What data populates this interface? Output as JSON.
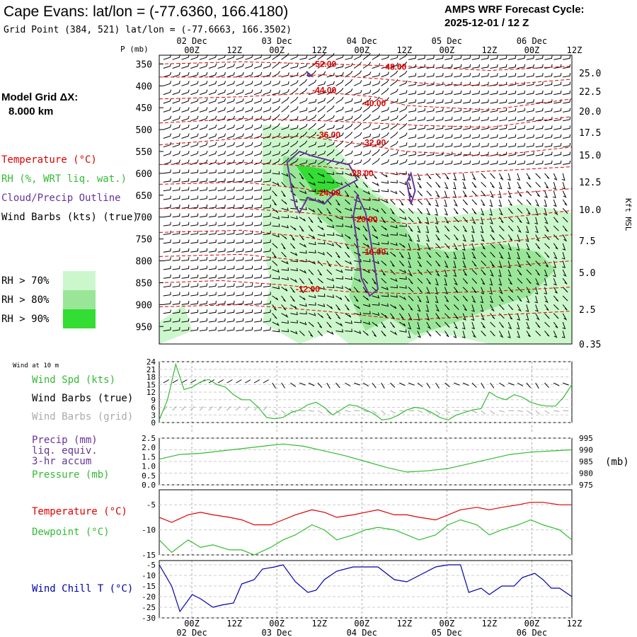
{
  "header": {
    "station_title": "Cape Evans:  lat/lon = (-77.6360, 166.4180)",
    "grid_point": "Grid Point (384, 521) lat/lon = (-77.6663, 166.3502)",
    "cycle_line1": "AMPS WRF Forecast Cycle:",
    "cycle_line2": "2025-12-01 / 12  Z"
  },
  "model": {
    "grid_label": "Model Grid ΔX:",
    "grid_value": "8.000 km"
  },
  "legend": {
    "temperature": "Temperature (°C)",
    "rh": "RH (%, WRT liq. wat.)",
    "cloud": "Cloud/Precip Outline",
    "wind": "Wind Barbs (kts) (true)",
    "rh70": "RH > 70%",
    "rh80": "RH > 80%",
    "rh90": "RH > 90%"
  },
  "colors": {
    "temp": "#dd0000",
    "rh70": "#ccf7cc",
    "rh80": "#99e699",
    "rh90": "#33dd33",
    "cloud": "#663399",
    "green": "#33bb33",
    "blue": "#0000aa",
    "gray": "#aaaaaa"
  },
  "time_axis": {
    "hour_labels": [
      "00Z",
      "12Z",
      "00Z",
      "12Z",
      "00Z",
      "12Z",
      "00Z",
      "12Z",
      "00Z",
      "12Z"
    ],
    "date_labels": [
      "02 Dec",
      "03 Dec",
      "04 Dec",
      "05 Dec",
      "06 Dec"
    ]
  },
  "chart_data": [
    {
      "type": "contour",
      "name": "vertical cross-section",
      "ylabel": "P (mb)",
      "y2label": "Kft MSL",
      "pressure_ticks": [
        350,
        400,
        450,
        500,
        550,
        600,
        650,
        700,
        750,
        800,
        850,
        900,
        950
      ],
      "height_ticks": [
        "25.0",
        "22.5",
        "20.0",
        "17.5",
        "15.0",
        "12.5",
        "10.0",
        "7.5",
        "5.0",
        "2.5",
        "0.35"
      ],
      "temperature_labels": [
        {
          "text": "-52.00",
          "t": 40,
          "p": 350
        },
        {
          "text": "-48.00",
          "t": 57,
          "p": 357
        },
        {
          "text": "-44.00",
          "t": 40,
          "p": 410
        },
        {
          "text": "-40.00",
          "t": 52,
          "p": 440
        },
        {
          "text": "-36.00",
          "t": 41,
          "p": 512
        },
        {
          "text": "-32.00",
          "t": 52,
          "p": 530
        },
        {
          "text": "-28.00",
          "t": 49,
          "p": 600
        },
        {
          "text": "-24.00",
          "t": 41,
          "p": 645
        },
        {
          "text": "-20.00",
          "t": 50,
          "p": 705
        },
        {
          "text": "-16.00",
          "t": 52,
          "p": 780
        },
        {
          "text": "-12.00",
          "t": 36,
          "p": 865
        }
      ],
      "temperature_contours": [
        {
          "pts": [
            [
              0,
              350
            ],
            [
              20,
              345
            ],
            [
              40,
              350
            ],
            [
              60,
              355
            ],
            [
              80,
              365
            ],
            [
              100,
              355
            ]
          ]
        },
        {
          "pts": [
            [
              0,
              380
            ],
            [
              20,
              380
            ],
            [
              40,
              375
            ],
            [
              55,
              385
            ],
            [
              65,
              395
            ],
            [
              80,
              400
            ],
            [
              100,
              385
            ]
          ]
        },
        {
          "pts": [
            [
              0,
              430
            ],
            [
              20,
              425
            ],
            [
              40,
              415
            ],
            [
              52,
              425
            ],
            [
              60,
              445
            ],
            [
              80,
              455
            ],
            [
              100,
              430
            ]
          ]
        },
        {
          "pts": [
            [
              0,
              485
            ],
            [
              20,
              475
            ],
            [
              40,
              480
            ],
            [
              52,
              485
            ],
            [
              62,
              490
            ],
            [
              80,
              495
            ],
            [
              100,
              470
            ]
          ]
        },
        {
          "pts": [
            [
              0,
              535
            ],
            [
              20,
              520
            ],
            [
              35,
              515
            ],
            [
              50,
              535
            ],
            [
              60,
              550
            ],
            [
              80,
              560
            ],
            [
              100,
              540
            ]
          ]
        },
        {
          "pts": [
            [
              0,
              580
            ],
            [
              20,
              575
            ],
            [
              40,
              585
            ],
            [
              50,
              595
            ],
            [
              62,
              605
            ],
            [
              80,
              595
            ],
            [
              100,
              585
            ]
          ]
        },
        {
          "pts": [
            [
              0,
              625
            ],
            [
              20,
              620
            ],
            [
              35,
              635
            ],
            [
              50,
              660
            ],
            [
              62,
              660
            ],
            [
              80,
              650
            ],
            [
              100,
              635
            ]
          ]
        },
        {
          "pts": [
            [
              0,
              680
            ],
            [
              20,
              680
            ],
            [
              35,
              690
            ],
            [
              50,
              705
            ],
            [
              60,
              715
            ],
            [
              80,
              705
            ],
            [
              100,
              685
            ]
          ]
        },
        {
          "pts": [
            [
              0,
              735
            ],
            [
              20,
              730
            ],
            [
              35,
              745
            ],
            [
              50,
              770
            ],
            [
              60,
              775
            ],
            [
              80,
              760
            ],
            [
              100,
              740
            ]
          ]
        },
        {
          "pts": [
            [
              0,
              790
            ],
            [
              20,
              785
            ],
            [
              35,
              800
            ],
            [
              50,
              820
            ],
            [
              60,
              830
            ],
            [
              80,
              815
            ],
            [
              100,
              800
            ]
          ]
        },
        {
          "pts": [
            [
              0,
              850
            ],
            [
              15,
              845
            ],
            [
              30,
              855
            ],
            [
              45,
              870
            ],
            [
              60,
              875
            ],
            [
              80,
              870
            ],
            [
              100,
              860
            ]
          ]
        },
        {
          "pts": [
            [
              0,
              905
            ],
            [
              20,
              900
            ],
            [
              40,
              915
            ],
            [
              60,
              935
            ],
            [
              80,
              925
            ],
            [
              100,
              915
            ]
          ]
        }
      ],
      "rh_regions": [
        {
          "level": 70,
          "pts": [
            [
              25,
              490
            ],
            [
              40,
              500
            ],
            [
              46,
              580
            ],
            [
              52,
              640
            ],
            [
              58,
              680
            ],
            [
              70,
              700
            ],
            [
              88,
              670
            ],
            [
              100,
              690
            ],
            [
              100,
              990
            ],
            [
              80,
              990
            ],
            [
              66,
              960
            ],
            [
              60,
              990
            ],
            [
              46,
              990
            ],
            [
              42,
              960
            ],
            [
              34,
              990
            ],
            [
              25,
              940
            ],
            [
              27,
              850
            ],
            [
              25,
              760
            ]
          ]
        },
        {
          "level": 70,
          "pts": [
            [
              0,
              940
            ],
            [
              6,
              900
            ],
            [
              8,
              960
            ],
            [
              0,
              990
            ]
          ]
        },
        {
          "level": 80,
          "pts": [
            [
              30,
              560
            ],
            [
              40,
              570
            ],
            [
              46,
              620
            ],
            [
              52,
              650
            ],
            [
              58,
              700
            ],
            [
              62,
              760
            ],
            [
              70,
              780
            ],
            [
              82,
              760
            ],
            [
              92,
              780
            ],
            [
              96,
              820
            ],
            [
              90,
              880
            ],
            [
              80,
              910
            ],
            [
              72,
              940
            ],
            [
              62,
              970
            ],
            [
              56,
              930
            ],
            [
              50,
              960
            ],
            [
              46,
              880
            ],
            [
              48,
              800
            ],
            [
              44,
              740
            ],
            [
              36,
              680
            ],
            [
              30,
              620
            ]
          ]
        },
        {
          "level": 90,
          "pts": [
            [
              33,
              580
            ],
            [
              40,
              590
            ],
            [
              44,
              630
            ],
            [
              38,
              650
            ]
          ]
        }
      ],
      "cloud_outlines": [
        {
          "pts": [
            [
              31,
              575
            ],
            [
              34,
              550
            ],
            [
              37,
              560
            ],
            [
              41,
              570
            ],
            [
              46,
              580
            ],
            [
              48,
              615
            ],
            [
              43,
              640
            ],
            [
              40,
              670
            ],
            [
              36,
              655
            ],
            [
              34,
              690
            ],
            [
              33,
              675
            ],
            [
              32,
              630
            ]
          ]
        },
        {
          "pts": [
            [
              48,
              650
            ],
            [
              50,
              690
            ],
            [
              51,
              740
            ],
            [
              52,
              800
            ],
            [
              53,
              865
            ],
            [
              51,
              880
            ],
            [
              49,
              840
            ],
            [
              48,
              760
            ],
            [
              47,
              700
            ]
          ]
        },
        {
          "pts": [
            [
              61,
              600
            ],
            [
              62,
              640
            ],
            [
              61,
              670
            ],
            [
              60,
              620
            ]
          ]
        },
        {
          "pts": [
            [
              36,
              377
            ],
            [
              36,
              370
            ],
            [
              37,
              378
            ]
          ]
        }
      ]
    },
    {
      "type": "line",
      "name": "wind at 10 m",
      "title": "Wind at 10 m",
      "series_labels": [
        "Wind Spd (kts)",
        "Wind Barbs (true)",
        "Wind Barbs (grid)"
      ],
      "y_ticks": [
        0,
        3,
        6,
        9,
        12,
        15,
        18,
        21,
        24
      ],
      "ylim": [
        0,
        24
      ],
      "x": [
        0,
        2,
        4,
        6,
        8,
        10,
        12,
        14,
        16,
        18,
        20,
        22,
        24,
        26,
        28,
        30,
        32,
        34,
        36,
        38,
        40,
        42,
        44,
        46,
        48,
        50,
        52,
        54,
        56,
        58,
        60,
        62,
        64,
        66,
        68,
        70,
        72,
        74,
        76,
        78,
        80,
        82,
        84,
        86,
        88,
        90,
        92,
        94,
        96,
        98,
        100
      ],
      "values": [
        1,
        9,
        23,
        13,
        14,
        16,
        17,
        15,
        14,
        11,
        9,
        9,
        6,
        2,
        1.5,
        2,
        4,
        5,
        7,
        8,
        6,
        3,
        5,
        7,
        6.5,
        5,
        3.5,
        1,
        1.5,
        3,
        5,
        6,
        5.5,
        4,
        2,
        1,
        3,
        4,
        5,
        5.5,
        12,
        10,
        9,
        11,
        10,
        8,
        7,
        6.5,
        6.5,
        10,
        15
      ]
    },
    {
      "type": "line",
      "name": "precip and pressure",
      "series_labels": [
        "Precip (mm)",
        "liq. equiv.",
        "3-hr accum",
        "Pressure (mb)"
      ],
      "y_ticks_left": [
        "0.0",
        "0.5",
        "1.0",
        "1.5",
        "2.0",
        "2.5"
      ],
      "y_ticks_right": [
        "975",
        "980",
        "985",
        "990",
        "995"
      ],
      "y2label": "(mb)",
      "ylim": [
        975,
        995
      ],
      "x": [
        0,
        5,
        10,
        15,
        20,
        25,
        30,
        35,
        40,
        45,
        50,
        55,
        60,
        65,
        70,
        75,
        80,
        85,
        90,
        95,
        100
      ],
      "values": [
        986,
        988,
        988.5,
        989.5,
        990.5,
        991.5,
        992.5,
        991.5,
        989.5,
        987.5,
        985,
        982.5,
        980.5,
        981,
        982,
        984,
        986,
        988,
        989,
        989.5,
        990
      ]
    },
    {
      "type": "line",
      "name": "temperature and dewpoint",
      "series_labels": [
        "Temperature (°C)",
        "Dewpoint (°C)"
      ],
      "y_ticks": [
        -15,
        -10,
        -5
      ],
      "ylim": [
        -15,
        -2
      ],
      "x": [
        0,
        3,
        7,
        10,
        13,
        17,
        20,
        23,
        27,
        30,
        33,
        37,
        40,
        43,
        47,
        50,
        53,
        57,
        60,
        63,
        67,
        70,
        73,
        77,
        80,
        83,
        87,
        90,
        93,
        97,
        100
      ],
      "series": [
        {
          "name": "Temperature",
          "values": [
            -7.5,
            -8.5,
            -7,
            -6.5,
            -7,
            -7.5,
            -8,
            -9,
            -9,
            -8,
            -7,
            -6,
            -6.5,
            -7.5,
            -7,
            -6.5,
            -6,
            -7,
            -7,
            -7.5,
            -8,
            -7,
            -6,
            -5.5,
            -6,
            -5.5,
            -5,
            -4.5,
            -4.5,
            -5,
            -5
          ]
        },
        {
          "name": "Dewpoint",
          "values": [
            -12,
            -14.5,
            -12,
            -13.5,
            -13,
            -14,
            -14,
            -15,
            -13.5,
            -12,
            -11,
            -9,
            -10,
            -12,
            -11,
            -10,
            -9.5,
            -10,
            -11,
            -12,
            -11,
            -9,
            -8,
            -9,
            -11,
            -10,
            -9,
            -8,
            -9,
            -10,
            -12
          ]
        }
      ]
    },
    {
      "type": "line",
      "name": "wind chill",
      "series_labels": [
        "Wind Chill T (°C)"
      ],
      "y_ticks": [
        -30,
        -25,
        -20,
        -15,
        -10,
        -5
      ],
      "ylim": [
        -30,
        -3
      ],
      "x": [
        0,
        3,
        5,
        8,
        10,
        13,
        15,
        18,
        20,
        23,
        25,
        28,
        30,
        33,
        36,
        38,
        40,
        43,
        47,
        50,
        53,
        57,
        60,
        63,
        67,
        70,
        73,
        75,
        78,
        80,
        83,
        86,
        88,
        91,
        93,
        95,
        97,
        100
      ],
      "values": [
        -5,
        -15,
        -27,
        -19,
        -21,
        -25,
        -24,
        -23,
        -14,
        -12,
        -7,
        -6,
        -5,
        -13,
        -18,
        -17,
        -12,
        -8,
        -6,
        -6,
        -6,
        -12,
        -13,
        -10,
        -6,
        -5,
        -5,
        -18,
        -16,
        -19,
        -15,
        -15,
        -11,
        -9,
        -12,
        -16,
        -16,
        -20
      ]
    }
  ]
}
